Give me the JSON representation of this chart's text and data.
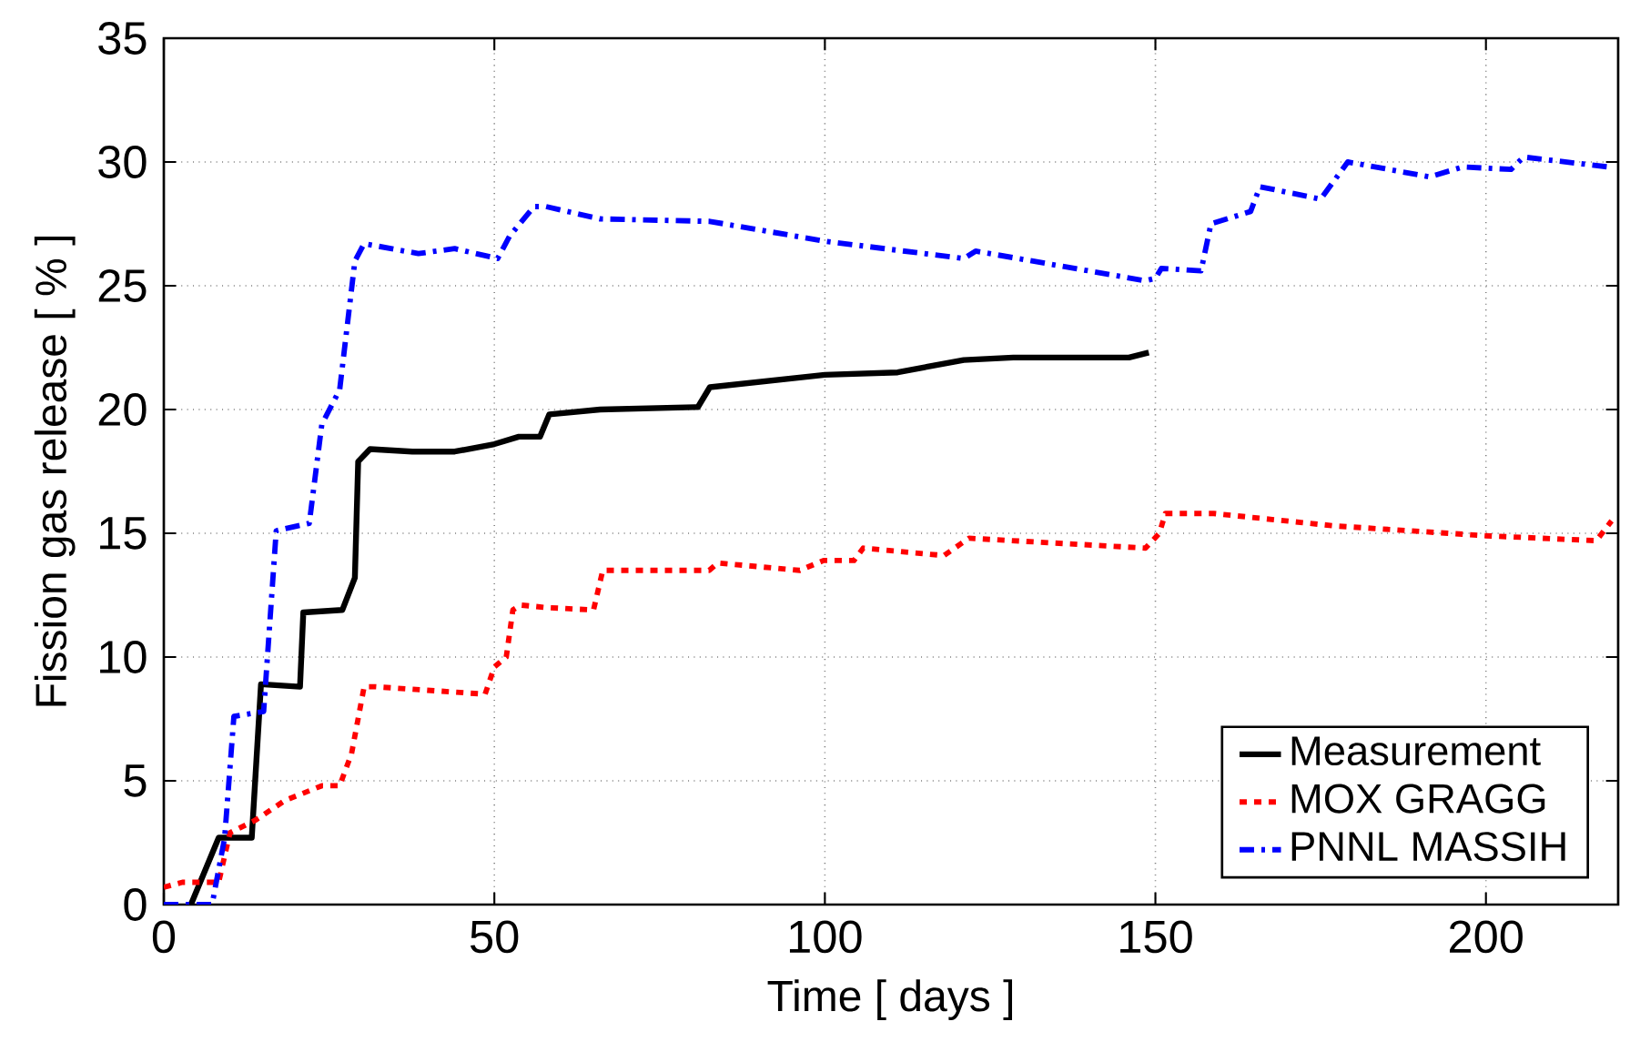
{
  "chart_data": {
    "type": "line",
    "xlabel": "Time [ days ]",
    "ylabel": "Fission gas release [ % ]",
    "xlim": [
      0,
      220
    ],
    "ylim": [
      0,
      35
    ],
    "xticks": [
      0,
      50,
      100,
      150,
      200
    ],
    "yticks": [
      0,
      5,
      10,
      15,
      20,
      25,
      30,
      35
    ],
    "grid": true,
    "legend": "bottom right",
    "series": [
      {
        "name": "Measurement",
        "color": "#000000",
        "line_style": "solid",
        "x": [
          4.1,
          8.3,
          13.3,
          14.7,
          20.6,
          21.1,
          27,
          28.9,
          29.4,
          31.2,
          37.6,
          44,
          50,
          53.7,
          56.9,
          58.3,
          66,
          80.8,
          82.6,
          100,
          111,
          121,
          128.5,
          146,
          149
        ],
        "values": [
          0,
          2.7,
          2.7,
          8.9,
          8.8,
          11.8,
          11.9,
          13.2,
          17.9,
          18.4,
          18.3,
          18.3,
          18.6,
          18.9,
          18.9,
          19.8,
          20.0,
          20.1,
          20.9,
          21.4,
          21.5,
          22.0,
          22.1,
          22.1,
          22.3
        ]
      },
      {
        "name": "MOX GRAGG",
        "color": "#ff0000",
        "line_style": "dashed",
        "x": [
          0,
          2.8,
          8.3,
          10,
          13.8,
          18.3,
          23.9,
          26.6,
          28.4,
          30.3,
          32,
          48.6,
          50,
          51.8,
          52.8,
          54,
          57.8,
          65,
          66.4,
          82.5,
          83.8,
          96.2,
          99.8,
          104.4,
          105.8,
          118,
          121.8,
          148.5,
          150.6,
          151.5,
          158.8,
          177,
          200,
          216.7,
          219
        ],
        "values": [
          0.7,
          0.9,
          0.9,
          2.9,
          3.4,
          4.2,
          4.8,
          4.8,
          6.1,
          8.8,
          8.8,
          8.5,
          9.6,
          10.0,
          11.9,
          12.1,
          12.0,
          11.9,
          13.5,
          13.5,
          13.8,
          13.5,
          13.9,
          13.9,
          14.4,
          14.1,
          14.8,
          14.4,
          15.0,
          15.8,
          15.8,
          15.3,
          14.9,
          14.7,
          15.5
        ]
      },
      {
        "name": "PNNL MASSIH",
        "color": "#0000ff",
        "line_style": "dashdot",
        "x": [
          0,
          7.3,
          9.2,
          10.6,
          15.1,
          17,
          22,
          23.9,
          26.6,
          28.9,
          30.3,
          38.5,
          44,
          50.5,
          52.3,
          56,
          57.8,
          66,
          82.6,
          100,
          121,
          122.8,
          148.5,
          150,
          150.9,
          156.9,
          158.4,
          164.4,
          165.8,
          175,
          179.1,
          191.5,
          196.5,
          203.8,
          205.7,
          218.5
        ],
        "values": [
          0,
          0,
          2.7,
          7.6,
          7.8,
          15.1,
          15.4,
          19.4,
          20.8,
          26.0,
          26.7,
          26.3,
          26.5,
          26.1,
          27.0,
          28.2,
          28.2,
          27.7,
          27.6,
          26.8,
          26.1,
          26.4,
          25.2,
          25.3,
          25.7,
          25.6,
          27.5,
          28.0,
          29.0,
          28.5,
          30.0,
          29.4,
          29.8,
          29.7,
          30.2,
          29.8
        ]
      }
    ]
  }
}
